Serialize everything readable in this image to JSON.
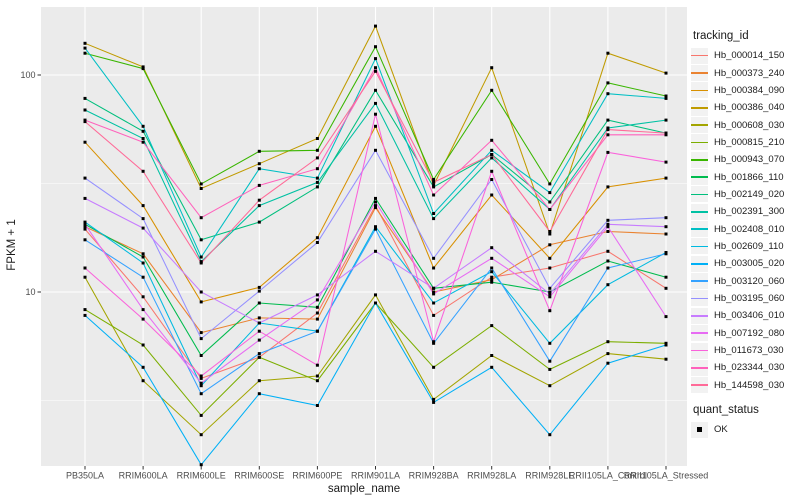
{
  "chart_data": {
    "type": "line",
    "title": "",
    "xlabel": "sample_name",
    "ylabel": "FPKM + 1",
    "y_scale": "log10",
    "y_ticks": [
      {
        "value": 100,
        "label": "100"
      },
      {
        "value": 10,
        "label": "10"
      }
    ],
    "y_minor_breaks": [
      31.623,
      3.1623
    ],
    "ylim": [
      1.58,
      201
    ],
    "grid": true,
    "legend_position": "right",
    "legend_title": "tracking_id",
    "point_legend": {
      "title": "quant_status",
      "items": [
        "OK"
      ],
      "marker": "black-square"
    },
    "panel_background": "#EBEBEB",
    "grid_color": "#FFFFFF",
    "point_color": "#000000",
    "x": [
      "PB350LA",
      "RRIM600LA",
      "RRIM600LE",
      "RRIM600SE",
      "RRIM600PE",
      "RRIM901LA",
      "RRIM928BA",
      "RRIM928LA",
      "RRIM928LE",
      "RRII105LA_Control",
      "RRII105LA_Stressed"
    ],
    "series": [
      {
        "name": "Hb_000014_150",
        "color": "#F8766D",
        "values": [
          19.5,
          9.5,
          4.0,
          5.0,
          8.0,
          25,
          7.8,
          11.7,
          12.9,
          15.4,
          10.4
        ]
      },
      {
        "name": "Hb_000373_240",
        "color": "#EA8331",
        "values": [
          20,
          15,
          6.5,
          7.6,
          7.5,
          24.5,
          10,
          11.4,
          16.5,
          19,
          18.5
        ]
      },
      {
        "name": "Hb_000384_090",
        "color": "#D89000",
        "values": [
          49,
          25,
          9,
          10.5,
          17.8,
          58,
          12.9,
          28,
          14.3,
          30.5,
          33.5
        ]
      },
      {
        "name": "Hb_000386_040",
        "color": "#C09B00",
        "values": [
          140,
          109,
          30,
          39,
          51,
          168,
          31,
          108,
          18.5,
          126,
          102
        ]
      },
      {
        "name": "Hb_000608_030",
        "color": "#A3A500",
        "values": [
          11.7,
          3.9,
          2.2,
          3.9,
          4.1,
          9.7,
          3.2,
          5.1,
          3.7,
          5.2,
          4.9
        ]
      },
      {
        "name": "Hb_000815_210",
        "color": "#7CAE00",
        "values": [
          8.3,
          5.7,
          2.7,
          5.0,
          3.9,
          8.9,
          4.5,
          7.0,
          4.4,
          5.9,
          5.8
        ]
      },
      {
        "name": "Hb_000943_070",
        "color": "#39B600",
        "values": [
          126,
          107,
          31.5,
          44.5,
          45,
          135,
          33,
          85,
          31.5,
          92,
          80
        ]
      },
      {
        "name": "Hb_001866_110",
        "color": "#00BB4E",
        "values": [
          20.5,
          14.5,
          5.1,
          8.9,
          8.5,
          27,
          10.4,
          11.1,
          10,
          13.9,
          11.7
        ]
      },
      {
        "name": "Hb_002149_020",
        "color": "#00BF7D",
        "values": [
          78,
          55,
          17.4,
          21,
          30.5,
          85,
          30.5,
          43,
          26,
          62,
          54
        ]
      },
      {
        "name": "Hb_002391_300",
        "color": "#00C1A3",
        "values": [
          69,
          51,
          13.8,
          25,
          32,
          74,
          21.8,
          41.5,
          24,
          57,
          62
        ]
      },
      {
        "name": "Hb_002408_010",
        "color": "#00BFC4",
        "values": [
          133,
          58,
          14.5,
          37,
          33.5,
          119,
          23,
          45,
          28.7,
          82,
          78
        ]
      },
      {
        "name": "Hb_002609_110",
        "color": "#00BAE0",
        "values": [
          21,
          13.6,
          3.7,
          7.2,
          6.6,
          20,
          8.9,
          12.4,
          5.8,
          10.8,
          15.2
        ]
      },
      {
        "name": "Hb_003005_020",
        "color": "#00B0F6",
        "values": [
          7.8,
          4.5,
          1.6,
          3.4,
          3.0,
          8.9,
          3.1,
          4.5,
          2.2,
          4.7,
          5.7
        ]
      },
      {
        "name": "Hb_003120_060",
        "color": "#35A2FF",
        "values": [
          17.4,
          11.7,
          3.4,
          5.2,
          6.6,
          19.5,
          5.8,
          12.9,
          4.8,
          12.9,
          15
        ]
      },
      {
        "name": "Hb_003195_060",
        "color": "#9590FF",
        "values": [
          33.5,
          21.8,
          6.1,
          10.1,
          16.9,
          45,
          14.3,
          33,
          10.4,
          21.4,
          22
        ]
      },
      {
        "name": "Hb_003406_010",
        "color": "#C77CFF",
        "values": [
          27,
          19.7,
          10,
          7.2,
          9.7,
          15.4,
          10.4,
          16,
          9.8,
          20.5,
          20
        ]
      },
      {
        "name": "Hb_007192_080",
        "color": "#E76BF3",
        "values": [
          20.5,
          8.3,
          3.8,
          6.0,
          9.2,
          26,
          9.8,
          14.3,
          9.5,
          20,
          7.7
        ]
      },
      {
        "name": "Hb_011673_030",
        "color": "#FA62DB",
        "values": [
          12.9,
          7.5,
          4.1,
          6.6,
          4.6,
          66,
          5.9,
          36,
          8.2,
          44,
          39.7
        ]
      },
      {
        "name": "Hb_023344_030",
        "color": "#FF62BC",
        "values": [
          62,
          49,
          22,
          31,
          37,
          108,
          28,
          50,
          24,
          53,
          53
        ]
      },
      {
        "name": "Hb_144598_030",
        "color": "#FF6A98",
        "values": [
          61,
          36,
          13.6,
          26.5,
          41.5,
          104,
          32,
          43,
          19,
          56,
          54
        ]
      }
    ]
  }
}
